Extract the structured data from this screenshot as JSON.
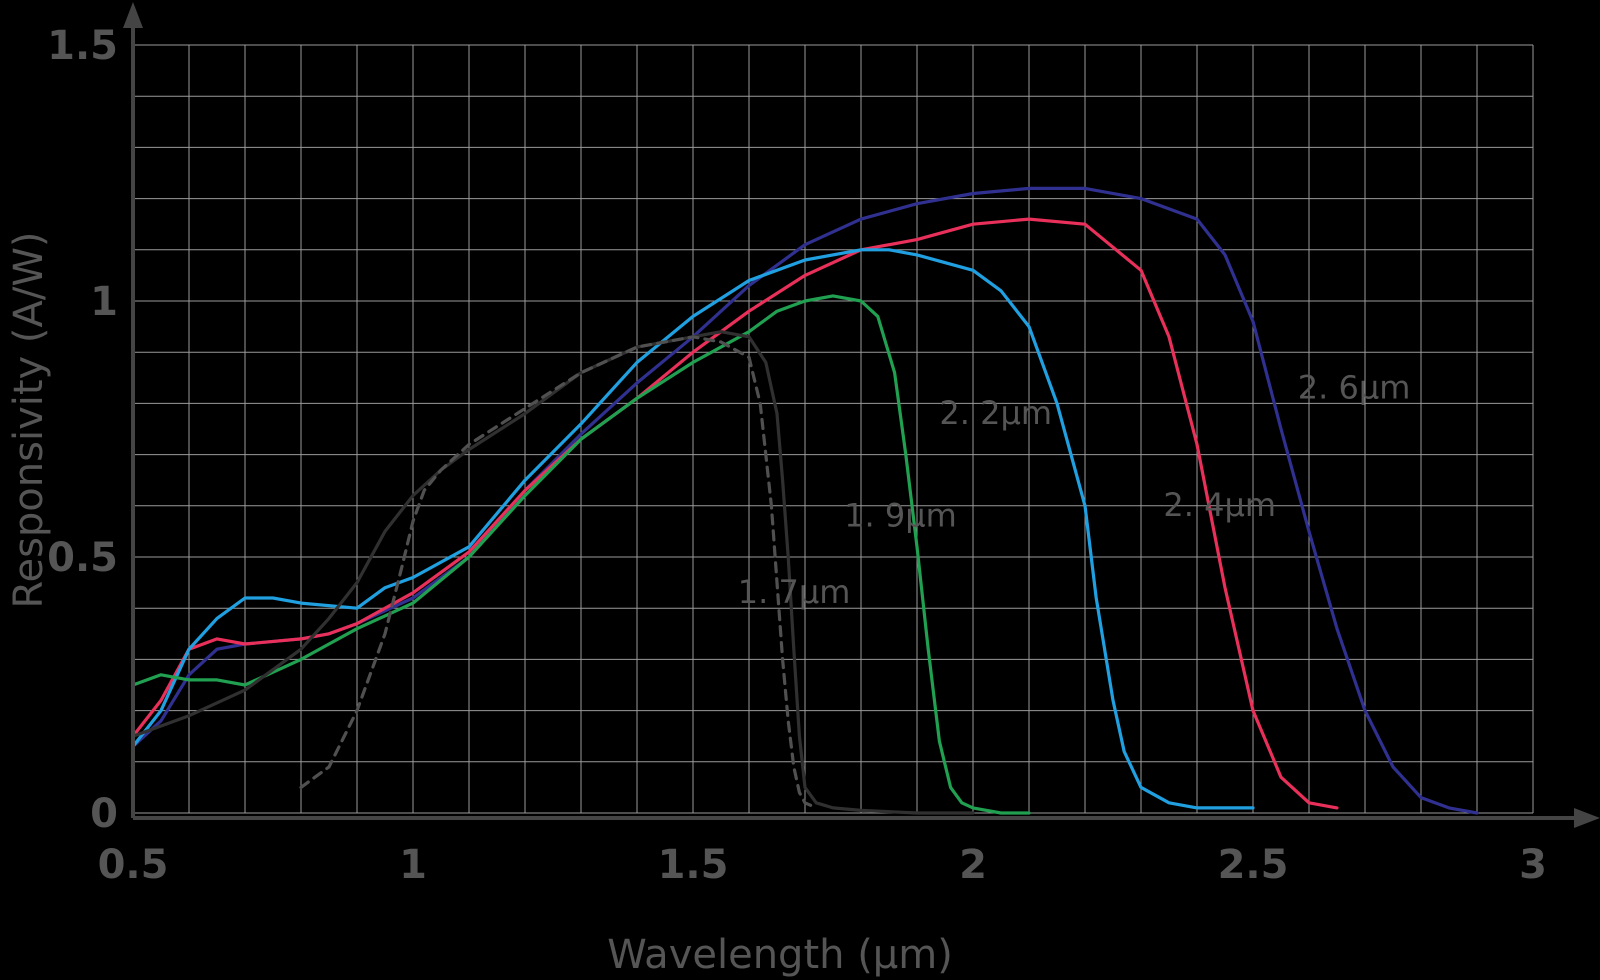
{
  "chart_data": {
    "type": "line",
    "title": "",
    "xlabel": "Wavelength (μm)",
    "ylabel": "Responsivity (A/W)",
    "xlim": [
      0.5,
      3
    ],
    "ylim": [
      0,
      1.5
    ],
    "grid": true,
    "x_ticks": [
      {
        "value": 0.5,
        "label": "0.5"
      },
      {
        "value": 1,
        "label": "1"
      },
      {
        "value": 1.5,
        "label": "1.5"
      },
      {
        "value": 2,
        "label": "2"
      },
      {
        "value": 2.5,
        "label": "2.5"
      },
      {
        "value": 3,
        "label": "3"
      }
    ],
    "y_ticks": [
      {
        "value": 0,
        "label": "0"
      },
      {
        "value": 0.5,
        "label": "0.5"
      },
      {
        "value": 1,
        "label": "1"
      },
      {
        "value": 1.5,
        "label": "1.5"
      }
    ],
    "colors": {
      "background": "#000000",
      "axis": "#444444",
      "grid": "#9a9a9a",
      "text": "#555555"
    },
    "series": [
      {
        "label": "2. 6μm",
        "color": "#303090",
        "dashed": false,
        "label_at": [
          2.58,
          0.81
        ],
        "x": [
          0.5,
          0.55,
          0.6,
          0.65,
          0.7,
          0.8,
          0.85,
          0.9,
          1.0,
          1.1,
          1.2,
          1.3,
          1.4,
          1.5,
          1.6,
          1.7,
          1.8,
          1.9,
          2.0,
          2.1,
          2.2,
          2.3,
          2.4,
          2.45,
          2.5,
          2.55,
          2.6,
          2.65,
          2.7,
          2.75,
          2.8,
          2.85,
          2.9
        ],
        "y": [
          0.13,
          0.18,
          0.27,
          0.32,
          0.33,
          0.34,
          0.35,
          0.37,
          0.42,
          0.5,
          0.63,
          0.74,
          0.84,
          0.93,
          1.03,
          1.11,
          1.16,
          1.19,
          1.21,
          1.22,
          1.22,
          1.2,
          1.16,
          1.09,
          0.96,
          0.75,
          0.55,
          0.36,
          0.2,
          0.09,
          0.03,
          0.01,
          0.0
        ]
      },
      {
        "label": "2. 4μm",
        "color": "#e8305a",
        "dashed": false,
        "label_at": [
          2.34,
          0.58
        ],
        "x": [
          0.5,
          0.55,
          0.6,
          0.65,
          0.7,
          0.8,
          0.85,
          0.9,
          1.0,
          1.1,
          1.2,
          1.3,
          1.4,
          1.5,
          1.6,
          1.7,
          1.8,
          1.9,
          2.0,
          2.1,
          2.2,
          2.3,
          2.35,
          2.4,
          2.45,
          2.5,
          2.55,
          2.6,
          2.65
        ],
        "y": [
          0.15,
          0.22,
          0.32,
          0.34,
          0.33,
          0.34,
          0.35,
          0.37,
          0.43,
          0.51,
          0.63,
          0.73,
          0.81,
          0.9,
          0.98,
          1.05,
          1.1,
          1.12,
          1.15,
          1.16,
          1.15,
          1.06,
          0.93,
          0.72,
          0.44,
          0.2,
          0.07,
          0.02,
          0.01
        ]
      },
      {
        "label": "2. 2μm",
        "color": "#20a0e0",
        "dashed": false,
        "label_at": [
          1.94,
          0.76
        ],
        "x": [
          0.5,
          0.55,
          0.6,
          0.65,
          0.7,
          0.75,
          0.8,
          0.9,
          0.95,
          1.0,
          1.1,
          1.2,
          1.3,
          1.4,
          1.5,
          1.6,
          1.7,
          1.8,
          1.85,
          1.9,
          2.0,
          2.05,
          2.1,
          2.15,
          2.2,
          2.22,
          2.25,
          2.27,
          2.3,
          2.35,
          2.4,
          2.45,
          2.5
        ],
        "y": [
          0.13,
          0.2,
          0.32,
          0.38,
          0.42,
          0.42,
          0.41,
          0.4,
          0.44,
          0.46,
          0.52,
          0.65,
          0.76,
          0.88,
          0.97,
          1.04,
          1.08,
          1.1,
          1.1,
          1.09,
          1.06,
          1.02,
          0.95,
          0.8,
          0.6,
          0.42,
          0.22,
          0.12,
          0.05,
          0.02,
          0.01,
          0.01,
          0.01
        ]
      },
      {
        "label": "1. 9μm",
        "color": "#20a050",
        "dashed": false,
        "label_at": [
          1.77,
          0.56
        ],
        "x": [
          0.5,
          0.55,
          0.6,
          0.65,
          0.7,
          0.8,
          0.85,
          0.9,
          1.0,
          1.1,
          1.2,
          1.3,
          1.4,
          1.5,
          1.6,
          1.65,
          1.7,
          1.75,
          1.8,
          1.83,
          1.86,
          1.88,
          1.9,
          1.92,
          1.94,
          1.96,
          1.98,
          2.0,
          2.05,
          2.1
        ],
        "y": [
          0.25,
          0.27,
          0.26,
          0.26,
          0.25,
          0.3,
          0.33,
          0.36,
          0.41,
          0.5,
          0.62,
          0.73,
          0.81,
          0.88,
          0.94,
          0.98,
          1.0,
          1.01,
          1.0,
          0.97,
          0.86,
          0.7,
          0.52,
          0.32,
          0.14,
          0.05,
          0.02,
          0.01,
          0.0,
          0.0
        ]
      },
      {
        "label": "1. 7μm",
        "color": "#303030",
        "dashed": false,
        "label_at": [
          1.58,
          0.41
        ],
        "x": [
          0.5,
          0.55,
          0.6,
          0.7,
          0.8,
          0.85,
          0.9,
          0.95,
          1.0,
          1.05,
          1.1,
          1.2,
          1.3,
          1.4,
          1.5,
          1.55,
          1.6,
          1.63,
          1.65,
          1.66,
          1.67,
          1.68,
          1.69,
          1.7,
          1.72,
          1.75,
          1.8,
          1.9,
          2.0
        ],
        "y": [
          0.15,
          0.17,
          0.19,
          0.24,
          0.32,
          0.38,
          0.45,
          0.55,
          0.62,
          0.67,
          0.71,
          0.78,
          0.86,
          0.91,
          0.93,
          0.94,
          0.93,
          0.88,
          0.78,
          0.65,
          0.5,
          0.32,
          0.15,
          0.05,
          0.02,
          0.01,
          0.005,
          0.0,
          0.0
        ]
      },
      {
        "label": "",
        "color": "#505050",
        "dashed": true,
        "label_at": null,
        "x": [
          0.8,
          0.85,
          0.9,
          0.95,
          0.98,
          1.0,
          1.02,
          1.05,
          1.1,
          1.2,
          1.3,
          1.4,
          1.5,
          1.55,
          1.6,
          1.62,
          1.64,
          1.65,
          1.66,
          1.67,
          1.68,
          1.69,
          1.7,
          1.72
        ],
        "y": [
          0.05,
          0.09,
          0.2,
          0.35,
          0.48,
          0.57,
          0.63,
          0.67,
          0.72,
          0.79,
          0.86,
          0.91,
          0.93,
          0.92,
          0.89,
          0.8,
          0.6,
          0.45,
          0.3,
          0.18,
          0.09,
          0.04,
          0.02,
          0.01
        ]
      }
    ]
  }
}
